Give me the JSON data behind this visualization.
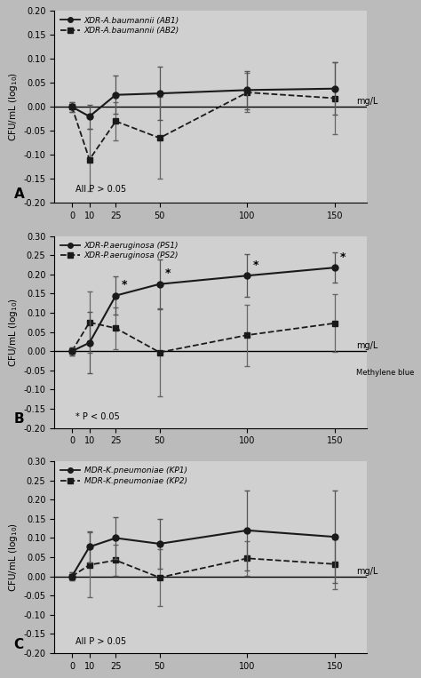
{
  "x": [
    0,
    10,
    25,
    50,
    100,
    150
  ],
  "panel_A": {
    "title": "XDR-A.baumannii (AB1)",
    "title2": "XDR-A.baumannii (AB2)",
    "s1_y": [
      0.0,
      -0.02,
      0.025,
      0.028,
      0.035,
      0.038
    ],
    "s1_err": [
      0.01,
      0.025,
      0.04,
      0.055,
      0.04,
      0.055
    ],
    "s2_y": [
      0.0,
      -0.11,
      -0.03,
      -0.065,
      0.03,
      0.018
    ],
    "s2_err": [
      0.01,
      0.065,
      0.04,
      0.085,
      0.04,
      0.075
    ],
    "ylim": [
      -0.2,
      0.2
    ],
    "yticks": [
      -0.2,
      -0.15,
      -0.1,
      -0.05,
      0.0,
      0.05,
      0.1,
      0.15,
      0.2
    ],
    "annotation": "All P > 0.05",
    "panel_label": "A",
    "show_methylene": false,
    "stars": [
      false,
      false,
      false,
      false,
      false,
      false
    ]
  },
  "panel_B": {
    "title": "XDR-P.aeruginosa (PS1)",
    "title2": "XDR-P.aeruginosa (PS2)",
    "s1_y": [
      0.0,
      0.022,
      0.145,
      0.175,
      0.197,
      0.218
    ],
    "s1_err": [
      0.01,
      0.08,
      0.05,
      0.065,
      0.055,
      0.04
    ],
    "s2_y": [
      0.0,
      0.075,
      0.06,
      -0.003,
      0.042,
      0.073
    ],
    "s2_err": [
      0.01,
      0.08,
      0.055,
      0.115,
      0.08,
      0.075
    ],
    "stars": [
      false,
      false,
      true,
      true,
      true,
      true
    ],
    "ylim": [
      -0.2,
      0.3
    ],
    "yticks": [
      -0.2,
      -0.15,
      -0.1,
      -0.05,
      0.0,
      0.05,
      0.1,
      0.15,
      0.2,
      0.25,
      0.3
    ],
    "annotation": "* P < 0.05",
    "panel_label": "B",
    "show_methylene": true
  },
  "panel_C": {
    "title": "MDR-K.pneumoniae (KP1)",
    "title2": "MDR-K.pneumoniae (KP2)",
    "s1_y": [
      0.0,
      0.077,
      0.1,
      0.085,
      0.12,
      0.103
    ],
    "s1_err": [
      0.01,
      0.04,
      0.055,
      0.065,
      0.105,
      0.12
    ],
    "s2_y": [
      0.0,
      0.03,
      0.042,
      -0.003,
      0.047,
      0.032
    ],
    "s2_err": [
      0.01,
      0.085,
      0.04,
      0.075,
      0.045,
      0.065
    ],
    "stars": [
      false,
      false,
      false,
      false,
      false,
      false
    ],
    "ylim": [
      -0.2,
      0.3
    ],
    "yticks": [
      -0.2,
      -0.15,
      -0.1,
      -0.05,
      0.0,
      0.05,
      0.1,
      0.15,
      0.2,
      0.25,
      0.3
    ],
    "annotation": "All P > 0.05",
    "panel_label": "C",
    "show_methylene": false
  },
  "bg_color": "#d0d0d0",
  "line_color": "#1a1a1a",
  "xtick_labels": [
    "0",
    "10",
    "25",
    "50",
    "100",
    "150"
  ],
  "xlabel": "mg/L",
  "methylene_label": "Methylene blue"
}
